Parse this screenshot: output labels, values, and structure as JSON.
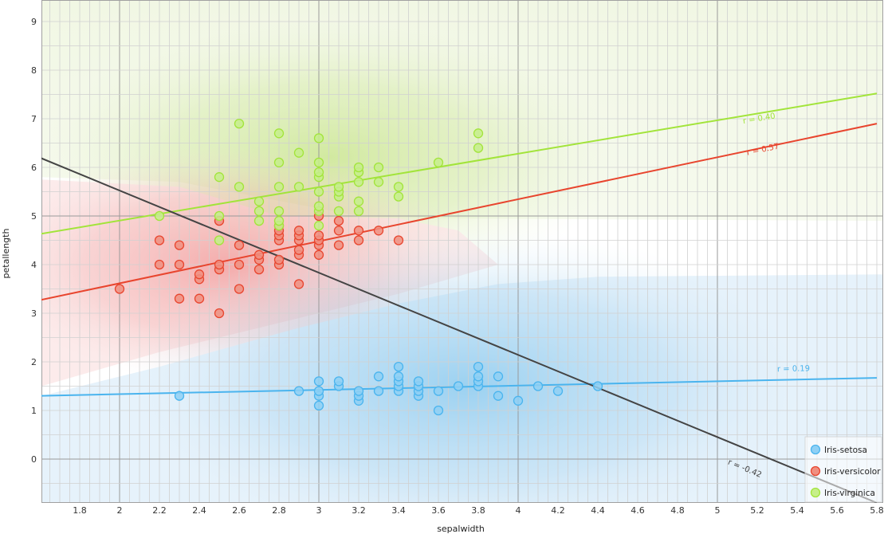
{
  "chart_data": {
    "type": "scatter",
    "title": "",
    "xlabel": "sepalwidth",
    "ylabel": "petallength",
    "xlim": [
      1.6,
      5.8
    ],
    "ylim": [
      -0.9,
      9.45
    ],
    "grid": true,
    "x_major_ticks": [
      1.8,
      2,
      2.2,
      2.4,
      2.6,
      2.8,
      3,
      3.2,
      3.4,
      3.6,
      3.8,
      4,
      4.2,
      4.4,
      4.6,
      4.8,
      5,
      5.2,
      5.4,
      5.6,
      5.8
    ],
    "x_tick_labels": [
      "1.8",
      "2",
      "2.2",
      "2.4",
      "2.6",
      "2.8",
      "3",
      "3.2",
      "3.4",
      "3.6",
      "3.8",
      "4",
      "4.2",
      "4.4",
      "4.6",
      "4.8",
      "5",
      "5.2",
      "5.4",
      "5.6",
      "5.8"
    ],
    "y_major_ticks": [
      0,
      1,
      2,
      3,
      4,
      5,
      6,
      7,
      8,
      9
    ],
    "y_tick_labels": [
      "0",
      "1",
      "2",
      "3",
      "4",
      "5",
      "6",
      "7",
      "8",
      "9"
    ],
    "legend_position": "bottom-right",
    "series": [
      {
        "name": "Iris-setosa",
        "color": "#4ab4ee",
        "fill": "#8ed0f5",
        "points": [
          [
            2.3,
            1.3
          ],
          [
            2.9,
            1.4
          ],
          [
            3.0,
            1.1
          ],
          [
            3.0,
            1.3
          ],
          [
            3.0,
            1.4
          ],
          [
            3.0,
            1.6
          ],
          [
            3.1,
            1.5
          ],
          [
            3.1,
            1.6
          ],
          [
            3.2,
            1.2
          ],
          [
            3.2,
            1.3
          ],
          [
            3.2,
            1.4
          ],
          [
            3.3,
            1.4
          ],
          [
            3.3,
            1.7
          ],
          [
            3.4,
            1.4
          ],
          [
            3.4,
            1.5
          ],
          [
            3.4,
            1.6
          ],
          [
            3.4,
            1.7
          ],
          [
            3.4,
            1.9
          ],
          [
            3.5,
            1.3
          ],
          [
            3.5,
            1.4
          ],
          [
            3.5,
            1.5
          ],
          [
            3.5,
            1.6
          ],
          [
            3.6,
            1.0
          ],
          [
            3.6,
            1.4
          ],
          [
            3.7,
            1.5
          ],
          [
            3.8,
            1.5
          ],
          [
            3.8,
            1.6
          ],
          [
            3.8,
            1.7
          ],
          [
            3.8,
            1.9
          ],
          [
            3.9,
            1.3
          ],
          [
            3.9,
            1.7
          ],
          [
            4.0,
            1.2
          ],
          [
            4.1,
            1.5
          ],
          [
            4.2,
            1.4
          ],
          [
            4.4,
            1.5
          ]
        ],
        "trend": {
          "x": [
            1.6,
            5.8
          ],
          "y": [
            1.3,
            1.67
          ],
          "label": "r = 0.19",
          "label_at": [
            5.3,
            1.8
          ]
        }
      },
      {
        "name": "Iris-versicolor",
        "color": "#e8452e",
        "fill": "#f08f80",
        "points": [
          [
            2.0,
            3.5
          ],
          [
            2.2,
            4.0
          ],
          [
            2.2,
            4.5
          ],
          [
            2.3,
            3.3
          ],
          [
            2.3,
            4.0
          ],
          [
            2.3,
            4.4
          ],
          [
            2.4,
            3.3
          ],
          [
            2.4,
            3.7
          ],
          [
            2.4,
            3.8
          ],
          [
            2.5,
            3.0
          ],
          [
            2.5,
            3.9
          ],
          [
            2.5,
            4.0
          ],
          [
            2.5,
            4.9
          ],
          [
            2.6,
            3.5
          ],
          [
            2.6,
            4.0
          ],
          [
            2.6,
            4.4
          ],
          [
            2.7,
            3.9
          ],
          [
            2.7,
            4.1
          ],
          [
            2.7,
            4.2
          ],
          [
            2.8,
            4.0
          ],
          [
            2.8,
            4.1
          ],
          [
            2.8,
            4.5
          ],
          [
            2.8,
            4.6
          ],
          [
            2.8,
            4.7
          ],
          [
            2.8,
            4.8
          ],
          [
            2.9,
            3.6
          ],
          [
            2.9,
            4.2
          ],
          [
            2.9,
            4.3
          ],
          [
            2.9,
            4.5
          ],
          [
            2.9,
            4.6
          ],
          [
            2.9,
            4.7
          ],
          [
            3.0,
            4.2
          ],
          [
            3.0,
            4.4
          ],
          [
            3.0,
            4.5
          ],
          [
            3.0,
            4.6
          ],
          [
            3.0,
            5.0
          ],
          [
            3.1,
            4.4
          ],
          [
            3.1,
            4.7
          ],
          [
            3.1,
            4.9
          ],
          [
            3.2,
            4.5
          ],
          [
            3.2,
            4.7
          ],
          [
            3.3,
            4.7
          ],
          [
            3.4,
            4.5
          ]
        ],
        "trend": {
          "x": [
            1.6,
            5.8
          ],
          "y": [
            3.27,
            6.9
          ],
          "label": "r = 0.57",
          "label_at": [
            5.15,
            6.25
          ]
        }
      },
      {
        "name": "Iris-virginica",
        "color": "#a2e43a",
        "fill": "#c6ef8a",
        "points": [
          [
            2.2,
            5.0
          ],
          [
            2.5,
            4.5
          ],
          [
            2.5,
            5.0
          ],
          [
            2.5,
            5.8
          ],
          [
            2.6,
            5.6
          ],
          [
            2.6,
            6.9
          ],
          [
            2.7,
            4.9
          ],
          [
            2.7,
            5.1
          ],
          [
            2.7,
            5.3
          ],
          [
            2.8,
            4.8
          ],
          [
            2.8,
            4.9
          ],
          [
            2.8,
            5.1
          ],
          [
            2.8,
            5.6
          ],
          [
            2.8,
            6.1
          ],
          [
            2.8,
            6.7
          ],
          [
            2.9,
            5.6
          ],
          [
            2.9,
            6.3
          ],
          [
            3.0,
            4.8
          ],
          [
            3.0,
            5.1
          ],
          [
            3.0,
            5.2
          ],
          [
            3.0,
            5.5
          ],
          [
            3.0,
            5.8
          ],
          [
            3.0,
            5.9
          ],
          [
            3.0,
            6.1
          ],
          [
            3.0,
            6.6
          ],
          [
            3.1,
            5.1
          ],
          [
            3.1,
            5.4
          ],
          [
            3.1,
            5.5
          ],
          [
            3.1,
            5.6
          ],
          [
            3.2,
            5.1
          ],
          [
            3.2,
            5.3
          ],
          [
            3.2,
            5.7
          ],
          [
            3.2,
            5.9
          ],
          [
            3.2,
            6.0
          ],
          [
            3.3,
            5.7
          ],
          [
            3.3,
            6.0
          ],
          [
            3.4,
            5.4
          ],
          [
            3.4,
            5.6
          ],
          [
            3.6,
            6.1
          ],
          [
            3.8,
            6.4
          ],
          [
            3.8,
            6.7
          ]
        ],
        "trend": {
          "x": [
            1.6,
            5.8
          ],
          "y": [
            4.63,
            7.52
          ],
          "label": "r = 0.40",
          "label_at": [
            5.13,
            6.9
          ]
        }
      }
    ],
    "overall_trend": {
      "x": [
        1.6,
        5.8
      ],
      "y": [
        6.2,
        -0.9
      ],
      "label": "r = -0.42",
      "color": "#444444",
      "label_at": [
        5.05,
        -0.1
      ]
    }
  },
  "legend": {
    "items": [
      {
        "label": "Iris-setosa"
      },
      {
        "label": "Iris-versicolor"
      },
      {
        "label": "Iris-virginica"
      }
    ]
  },
  "colors": {
    "grid_major": "#9a9a9a",
    "grid_minor": "#d0d0d0",
    "region_setosa": "#4ab4ee",
    "region_versicolor": "#f07070",
    "region_virginica": "#bde07a"
  }
}
